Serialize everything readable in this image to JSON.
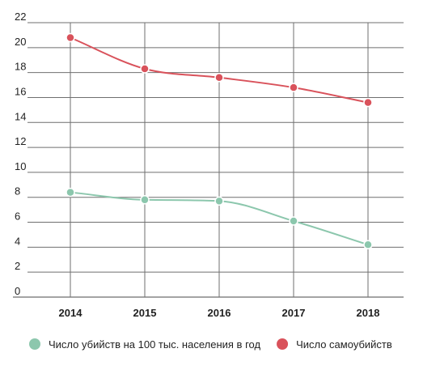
{
  "chart_data": {
    "type": "line",
    "title": "",
    "xlabel": "",
    "ylabel": "",
    "categories": [
      "2014",
      "2015",
      "2016",
      "2017",
      "2018"
    ],
    "y_ticks": [
      "0",
      "2",
      "4",
      "6",
      "8",
      "10",
      "12",
      "14",
      "16",
      "18",
      "20",
      "22"
    ],
    "ylim": [
      0,
      22
    ],
    "grid": "horizontal and vertical",
    "legend_position": "bottom",
    "series": [
      {
        "name": "Число убийств на 100 тыс. населения в год",
        "color": "#8cc7ad",
        "values": [
          8.4,
          7.8,
          7.7,
          6.1,
          4.2
        ]
      },
      {
        "name": "Число самоубийств",
        "color": "#d9525b",
        "values": [
          20.8,
          18.3,
          17.6,
          16.8,
          15.6
        ]
      }
    ]
  }
}
